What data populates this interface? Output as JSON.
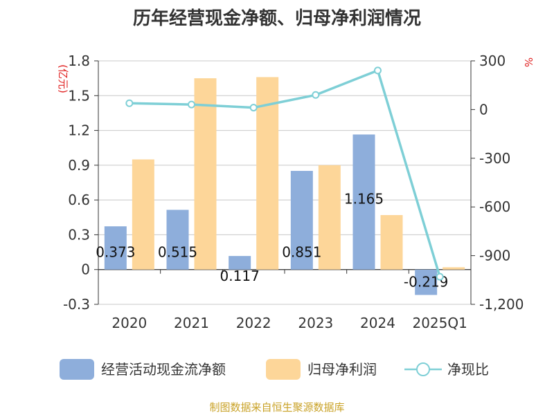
{
  "title": "历年经营现金净额、归母净利润情况",
  "source": "制图数据来自恒生聚源数据库",
  "chart_data": {
    "type": "bar",
    "categories": [
      "2020",
      "2021",
      "2022",
      "2023",
      "2024",
      "2025Q1"
    ],
    "series": [
      {
        "name": "经营活动现金流净额",
        "type": "bar",
        "axis": "left",
        "color": "#8eaedb",
        "values": [
          0.373,
          0.515,
          0.117,
          0.851,
          1.165,
          -0.219
        ],
        "labels": [
          "0.373",
          "0.515",
          "0.117",
          "0.851",
          "1.165",
          "-0.219"
        ]
      },
      {
        "name": "归母净利润",
        "type": "bar",
        "axis": "left",
        "color": "#fdd699",
        "values": [
          0.95,
          1.65,
          1.66,
          0.9,
          0.47,
          0.02
        ]
      },
      {
        "name": "净现比",
        "type": "line",
        "axis": "right",
        "color": "#7ecfd6",
        "values": [
          39,
          31,
          12,
          90,
          241,
          -1030
        ]
      }
    ],
    "y_left": {
      "unit": "(亿元)",
      "ylim": [
        -0.3,
        1.8
      ],
      "ticks": [
        "-0.3",
        "0",
        "0.3",
        "0.6",
        "0.9",
        "1.2",
        "1.5",
        "1.8"
      ],
      "tick_values": [
        -0.3,
        0,
        0.3,
        0.6,
        0.9,
        1.2,
        1.5,
        1.8
      ]
    },
    "y_right": {
      "unit": "%",
      "ylim": [
        -1200,
        300
      ],
      "ticks": [
        "-1,200",
        "-900",
        "-600",
        "-300",
        "0",
        "300"
      ],
      "tick_values": [
        -1200,
        -900,
        -600,
        -300,
        0,
        300
      ]
    },
    "grid": true,
    "legend": "bottom"
  }
}
